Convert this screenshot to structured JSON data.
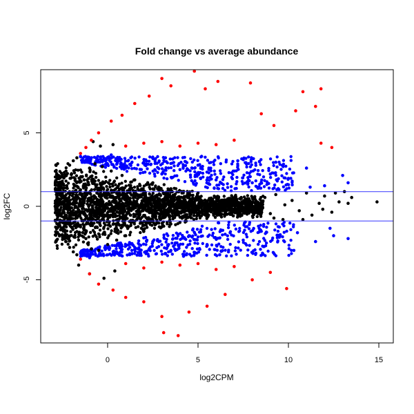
{
  "chart_data": {
    "type": "scatter",
    "title": "Fold change vs average abundance",
    "xlabel": "log2CPM",
    "ylabel": "log2FC",
    "xlim": [
      -3.7,
      15.8
    ],
    "ylim": [
      -9.3,
      9.3
    ],
    "x_ticks": [
      0,
      5,
      10,
      15
    ],
    "y_ticks": [
      -5,
      0,
      5
    ],
    "hlines": [
      1,
      -1
    ],
    "hline_color": "#3333ff",
    "grid": false,
    "legend": "none",
    "colors": {
      "not_significant": "#000000",
      "abs_log2fc_gt_1": "#0000ff",
      "abs_log2fc_gt_4": "#ff0000"
    },
    "series": [
      {
        "key": "black",
        "color": "#000000",
        "points": [
          [
            -2.9,
            0.0
          ],
          [
            -2.8,
            0.6
          ],
          [
            -2.8,
            -0.6
          ],
          [
            -2.7,
            1.2
          ],
          [
            -2.7,
            -1.2
          ],
          [
            -2.6,
            1.6
          ],
          [
            -2.6,
            -1.6
          ],
          [
            -2.5,
            2.0
          ],
          [
            -2.5,
            -2.0
          ],
          [
            -2.3,
            2.4
          ],
          [
            -2.3,
            -2.4
          ],
          [
            -2.1,
            2.8
          ],
          [
            -2.1,
            -2.8
          ],
          [
            -1.9,
            3.1
          ],
          [
            -1.9,
            -3.1
          ],
          [
            -1.7,
            3.3
          ],
          [
            -1.7,
            -3.3
          ],
          [
            -2.2,
            0.3
          ],
          [
            -2.0,
            -0.5
          ],
          [
            -1.8,
            1.0
          ],
          [
            -1.5,
            -1.4
          ],
          [
            -1.3,
            1.8
          ],
          [
            -1.2,
            -2.2
          ],
          [
            -1.0,
            2.6
          ],
          [
            -0.9,
            -2.9
          ],
          [
            -0.7,
            2.9
          ],
          [
            -0.5,
            -3.0
          ],
          [
            -0.3,
            2.7
          ],
          [
            0.0,
            -2.6
          ],
          [
            0.2,
            2.4
          ],
          [
            0.5,
            -2.3
          ],
          [
            0.8,
            2.1
          ],
          [
            1.0,
            -2.0
          ],
          [
            1.5,
            1.8
          ],
          [
            2.0,
            -1.7
          ],
          [
            2.5,
            1.6
          ],
          [
            3.0,
            -1.4
          ],
          [
            3.5,
            1.2
          ],
          [
            4.0,
            -1.1
          ],
          [
            -0.8,
            4.4
          ],
          [
            -0.4,
            4.1
          ],
          [
            0.3,
            4.2
          ],
          [
            -1.0,
            -4.6
          ],
          [
            -0.2,
            -4.9
          ],
          [
            0.4,
            -4.4
          ],
          [
            -1.6,
            -4.0
          ],
          [
            8.7,
            0.6
          ],
          [
            9.0,
            -0.5
          ],
          [
            9.3,
            0.8
          ],
          [
            9.7,
            -0.9
          ],
          [
            10.2,
            0.4
          ],
          [
            10.6,
            -0.3
          ],
          [
            11.0,
            0.9
          ],
          [
            11.3,
            -0.6
          ],
          [
            11.7,
            0.2
          ],
          [
            12.0,
            0.7
          ],
          [
            12.4,
            -0.4
          ],
          [
            12.8,
            0.3
          ],
          [
            13.1,
            1.0
          ],
          [
            13.5,
            0.6
          ],
          [
            14.9,
            0.3
          ],
          [
            9.2,
            -0.8
          ],
          [
            9.8,
            0.1
          ],
          [
            10.8,
            -0.9
          ],
          [
            11.9,
            -0.2
          ],
          [
            12.6,
            0.9
          ],
          [
            13.3,
            0.2
          ]
        ]
      },
      {
        "key": "blue",
        "color": "#0000ff",
        "points": [
          [
            -1.5,
            3.4
          ],
          [
            -1.2,
            3.0
          ],
          [
            -1.0,
            -3.5
          ],
          [
            -0.6,
            3.2
          ],
          [
            -0.3,
            -3.3
          ],
          [
            0.2,
            3.5
          ],
          [
            0.5,
            -3.1
          ],
          [
            1.0,
            2.6
          ],
          [
            1.5,
            -2.8
          ],
          [
            2.0,
            3.0
          ],
          [
            2.5,
            -2.4
          ],
          [
            3.0,
            2.2
          ],
          [
            3.5,
            -3.0
          ],
          [
            4.0,
            2.5
          ],
          [
            4.5,
            -2.0
          ],
          [
            5.0,
            2.8
          ],
          [
            5.5,
            -2.6
          ],
          [
            6.0,
            1.8
          ],
          [
            6.5,
            -1.9
          ],
          [
            7.0,
            2.4
          ],
          [
            7.5,
            -2.3
          ],
          [
            8.0,
            1.6
          ],
          [
            8.5,
            -1.7
          ],
          [
            9.0,
            2.2
          ],
          [
            9.5,
            -2.1
          ],
          [
            10.0,
            1.9
          ],
          [
            10.5,
            -1.8
          ],
          [
            11.0,
            2.6
          ],
          [
            11.5,
            -2.4
          ],
          [
            12.0,
            1.4
          ],
          [
            12.5,
            -2.0
          ],
          [
            13.0,
            2.1
          ],
          [
            13.3,
            -2.2
          ],
          [
            13.3,
            1.6
          ],
          [
            12.3,
            -1.5
          ],
          [
            11.2,
            1.3
          ],
          [
            10.3,
            -3.0
          ],
          [
            9.3,
            3.0
          ],
          [
            8.2,
            -3.2
          ],
          [
            7.2,
            3.1
          ],
          [
            6.2,
            -3.3
          ],
          [
            5.2,
            3.4
          ],
          [
            4.2,
            -3.4
          ],
          [
            3.2,
            3.3
          ]
        ]
      },
      {
        "key": "red",
        "color": "#ff0000",
        "points": [
          [
            -1.5,
            3.6
          ],
          [
            -1.2,
            4.0
          ],
          [
            -0.9,
            4.5
          ],
          [
            -0.5,
            5.0
          ],
          [
            0.2,
            5.8
          ],
          [
            0.8,
            6.2
          ],
          [
            1.5,
            7.0
          ],
          [
            2.3,
            7.5
          ],
          [
            3.0,
            8.7
          ],
          [
            3.5,
            8.2
          ],
          [
            4.8,
            9.2
          ],
          [
            5.4,
            8.0
          ],
          [
            6.1,
            8.5
          ],
          [
            7.9,
            8.4
          ],
          [
            8.5,
            6.3
          ],
          [
            10.4,
            6.5
          ],
          [
            10.8,
            7.8
          ],
          [
            11.5,
            6.8
          ],
          [
            11.8,
            8.0
          ],
          [
            12.4,
            4.0
          ],
          [
            11.8,
            4.3
          ],
          [
            9.2,
            5.5
          ],
          [
            7.0,
            4.5
          ],
          [
            6.0,
            4.2
          ],
          [
            5.0,
            4.3
          ],
          [
            4.0,
            4.1
          ],
          [
            3.0,
            4.4
          ],
          [
            2.0,
            4.3
          ],
          [
            1.0,
            4.1
          ],
          [
            -1.5,
            -3.6
          ],
          [
            -1.0,
            -4.6
          ],
          [
            -0.5,
            -5.3
          ],
          [
            0.3,
            -5.7
          ],
          [
            1.0,
            -6.2
          ],
          [
            2.0,
            -6.5
          ],
          [
            3.0,
            -7.5
          ],
          [
            3.1,
            -8.6
          ],
          [
            3.9,
            -8.8
          ],
          [
            4.5,
            -7.2
          ],
          [
            5.5,
            -6.8
          ],
          [
            6.5,
            -6.0
          ],
          [
            8.0,
            -5.0
          ],
          [
            9.0,
            -4.5
          ],
          [
            9.9,
            -5.6
          ],
          [
            7.0,
            -4.1
          ],
          [
            6.0,
            -4.3
          ],
          [
            5.0,
            -3.9
          ],
          [
            4.0,
            -4.0
          ],
          [
            3.0,
            -3.8
          ],
          [
            2.0,
            -4.2
          ],
          [
            1.0,
            -3.9
          ]
        ]
      }
    ]
  }
}
